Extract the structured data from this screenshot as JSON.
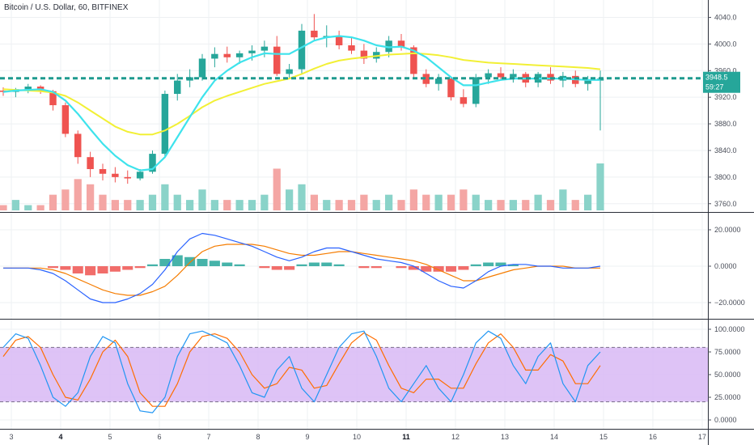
{
  "header": {
    "title": "Bitcoin / U.S. Dollar, 60, BITFINEX"
  },
  "colors": {
    "up": "#26a69a",
    "down": "#ef5350",
    "up_vol": "#8ad3c9",
    "down_vol": "#f4a6a4",
    "ema_fast": "#3ee3ec",
    "ema_slow": "#f2f035",
    "price_line": "#1e9a8f",
    "macd": "#2962ff",
    "signal": "#f57c00",
    "stoch_k": "#2196f3",
    "stoch_d": "#ff6d00",
    "stoch_band": "#d8b8f4",
    "grid": "#eef0f3",
    "axis": "#4a4e59"
  },
  "price_tag": {
    "value": "3948.5",
    "countdown": "59:27"
  },
  "chart_data": [
    {
      "type": "candlestick",
      "series": [
        {
          "name": "BTCUSD 60",
          "values": [
            [
              3930,
              3935,
              3922,
              3928
            ],
            [
              3928,
              3934,
              3920,
              3932
            ],
            [
              3932,
              3940,
              3926,
              3936
            ],
            [
              3936,
              3938,
              3925,
              3929
            ],
            [
              3929,
              3931,
              3900,
              3908
            ],
            [
              3908,
              3912,
              3860,
              3865
            ],
            [
              3865,
              3870,
              3820,
              3830
            ],
            [
              3830,
              3838,
              3800,
              3812
            ],
            [
              3812,
              3820,
              3795,
              3805
            ],
            [
              3805,
              3815,
              3792,
              3800
            ],
            [
              3800,
              3810,
              3790,
              3798
            ],
            [
              3798,
              3812,
              3795,
              3808
            ],
            [
              3808,
              3840,
              3805,
              3835
            ],
            [
              3835,
              3930,
              3830,
              3925
            ],
            [
              3925,
              3955,
              3915,
              3945
            ],
            [
              3945,
              3962,
              3935,
              3950
            ],
            [
              3950,
              3985,
              3945,
              3978
            ],
            [
              3978,
              3995,
              3965,
              3985
            ],
            [
              3985,
              3996,
              3972,
              3980
            ],
            [
              3980,
              3990,
              3970,
              3986
            ],
            [
              3986,
              3998,
              3975,
              3990
            ],
            [
              3990,
              4005,
              3980,
              3996
            ],
            [
              3996,
              4012,
              3952,
              3955
            ],
            [
              3955,
              3970,
              3948,
              3962
            ],
            [
              3962,
              4030,
              3955,
              4020
            ],
            [
              4020,
              4045,
              4005,
              4010
            ],
            [
              4010,
              4028,
              3995,
              4012
            ],
            [
              4012,
              4020,
              3992,
              3998
            ],
            [
              3998,
              4010,
              3985,
              3990
            ],
            [
              3990,
              4000,
              3970,
              3978
            ],
            [
              3978,
              3995,
              3972,
              3988
            ],
            [
              3988,
              4012,
              3980,
              4005
            ],
            [
              4005,
              4015,
              3990,
              3995
            ],
            [
              3995,
              3998,
              3950,
              3955
            ],
            [
              3955,
              3962,
              3935,
              3940
            ],
            [
              3940,
              3955,
              3930,
              3948
            ],
            [
              3948,
              3950,
              3915,
              3920
            ],
            [
              3920,
              3932,
              3905,
              3910
            ],
            [
              3910,
              3955,
              3905,
              3950
            ],
            [
              3950,
              3962,
              3940,
              3956
            ],
            [
              3956,
              3965,
              3945,
              3950
            ],
            [
              3950,
              3962,
              3942,
              3955
            ],
            [
              3955,
              3958,
              3935,
              3942
            ],
            [
              3942,
              3958,
              3935,
              3955
            ],
            [
              3955,
              3965,
              3940,
              3945
            ],
            [
              3945,
              3958,
              3935,
              3952
            ],
            [
              3952,
              3960,
              3935,
              3940
            ],
            [
              3940,
              3952,
              3930,
              3945
            ],
            [
              3945,
              3960,
              3870,
              3948
            ]
          ]
        }
      ],
      "x_ticks": [
        "3",
        "4",
        "5",
        "6",
        "7",
        "8",
        "9",
        "10",
        "11",
        "12",
        "13",
        "14",
        "15",
        "16",
        "17"
      ],
      "bold_x_ticks": [
        "4",
        "11"
      ],
      "y_ticks": [
        4040.0,
        4000.0,
        3960.0,
        3920.0,
        3880.0,
        3840.0,
        3800.0,
        3760.0
      ],
      "ylim": [
        3750,
        4060
      ],
      "ema_fast": [
        3928,
        3930,
        3931,
        3932,
        3928,
        3915,
        3895,
        3872,
        3850,
        3832,
        3818,
        3810,
        3812,
        3830,
        3860,
        3890,
        3920,
        3945,
        3960,
        3972,
        3980,
        3986,
        3985,
        3985,
        3995,
        4005,
        4010,
        4012,
        4010,
        4005,
        3998,
        3995,
        3996,
        3990,
        3980,
        3965,
        3950,
        3938,
        3938,
        3942,
        3946,
        3948,
        3948,
        3948,
        3948,
        3948,
        3947,
        3946,
        3946
      ],
      "ema_slow": [
        3932,
        3931,
        3930,
        3929,
        3927,
        3922,
        3912,
        3900,
        3888,
        3876,
        3868,
        3864,
        3864,
        3870,
        3880,
        3892,
        3905,
        3915,
        3922,
        3928,
        3934,
        3940,
        3944,
        3948,
        3955,
        3963,
        3970,
        3975,
        3978,
        3980,
        3982,
        3984,
        3985,
        3986,
        3985,
        3983,
        3980,
        3976,
        3974,
        3972,
        3971,
        3970,
        3969,
        3968,
        3967,
        3966,
        3965,
        3964,
        3962
      ],
      "price_line": 3948.5
    },
    {
      "type": "bar",
      "name": "Volume",
      "values": [
        1,
        2,
        1,
        1,
        3,
        4,
        6,
        5,
        3,
        2,
        2,
        2,
        3,
        5,
        3,
        2,
        4,
        2,
        2,
        2,
        2,
        3,
        8,
        4,
        5,
        3,
        2,
        2,
        2,
        3,
        2,
        3,
        2,
        4,
        3,
        3,
        3,
        4,
        3,
        2,
        2,
        2,
        2,
        3,
        2,
        4,
        2,
        3,
        9
      ]
    },
    {
      "type": "bar",
      "name": "MACD",
      "histogram": [
        0,
        0,
        0,
        0,
        -1,
        -2,
        -4,
        -5,
        -4,
        -3,
        -2,
        -1,
        1,
        4,
        6,
        5,
        4,
        3,
        2,
        1,
        0,
        -1,
        -2,
        -2,
        1,
        2,
        2,
        1,
        0,
        -1,
        -1,
        0,
        -1,
        -2,
        -3,
        -3,
        -3,
        -2,
        1,
        2,
        2,
        1,
        0,
        0,
        0,
        0,
        0,
        0,
        0
      ],
      "macd": [
        -1,
        -1,
        -1,
        -2,
        -4,
        -8,
        -13,
        -18,
        -20,
        -20,
        -18,
        -15,
        -10,
        -2,
        8,
        15,
        18,
        17,
        15,
        13,
        11,
        8,
        5,
        3,
        5,
        8,
        10,
        10,
        8,
        6,
        4,
        3,
        2,
        0,
        -4,
        -8,
        -11,
        -12,
        -8,
        -3,
        0,
        1,
        1,
        0,
        0,
        -1,
        -1,
        -1,
        0
      ],
      "signal": [
        -1,
        -1,
        -1,
        -1,
        -2,
        -4,
        -7,
        -10,
        -13,
        -15,
        -16,
        -16,
        -14,
        -11,
        -5,
        2,
        8,
        11,
        12,
        12,
        12,
        11,
        9,
        7,
        6,
        6,
        7,
        8,
        8,
        7,
        6,
        5,
        4,
        3,
        1,
        -2,
        -5,
        -8,
        -8,
        -6,
        -4,
        -2,
        -1,
        0,
        0,
        0,
        -1,
        -1,
        -1
      ],
      "y_ticks": [
        20.0,
        0.0,
        -20.0
      ],
      "y_tick_labels": [
        "20.0000",
        "0.0000",
        "−20.0000"
      ],
      "ylim": [
        -28,
        28
      ]
    },
    {
      "type": "line",
      "name": "Stochastic",
      "k": [
        80,
        95,
        90,
        60,
        25,
        15,
        30,
        70,
        92,
        85,
        40,
        10,
        8,
        25,
        70,
        95,
        98,
        92,
        85,
        60,
        30,
        25,
        55,
        70,
        35,
        20,
        50,
        80,
        95,
        98,
        70,
        35,
        20,
        40,
        60,
        35,
        20,
        50,
        85,
        98,
        90,
        60,
        40,
        70,
        85,
        40,
        20,
        60,
        75
      ],
      "d": [
        70,
        88,
        92,
        80,
        50,
        25,
        22,
        45,
        75,
        88,
        70,
        30,
        15,
        15,
        40,
        75,
        92,
        95,
        90,
        75,
        50,
        35,
        40,
        58,
        55,
        35,
        38,
        62,
        85,
        96,
        88,
        60,
        35,
        30,
        45,
        45,
        35,
        35,
        62,
        85,
        95,
        80,
        55,
        55,
        72,
        65,
        40,
        40,
        60
      ],
      "y_ticks": [
        100.0,
        75.0,
        50.0,
        25.0,
        0.0
      ],
      "y_tick_labels": [
        "100.0000",
        "75.0000",
        "50.0000",
        "25.0000",
        "0.0000"
      ],
      "ylim": [
        -8,
        108
      ],
      "band": [
        20,
        80
      ]
    }
  ]
}
